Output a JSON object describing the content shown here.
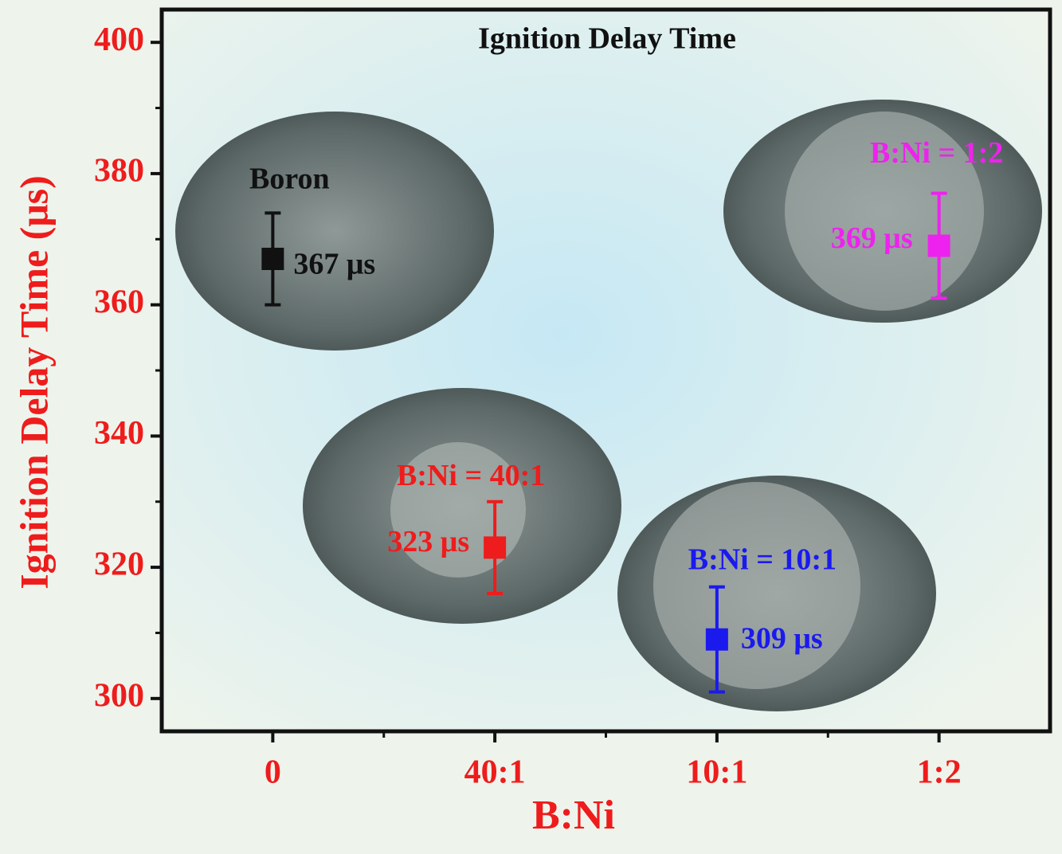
{
  "chart_data": {
    "type": "errorbar",
    "title": "Ignition Delay Time",
    "x_label": "B:Ni",
    "y_label": "Ignition Delay Time (μs)",
    "categories": [
      "0",
      "40:1",
      "10:1",
      "1:2"
    ],
    "values": [
      367,
      323,
      309,
      369
    ],
    "errors": [
      7,
      7,
      8,
      8
    ],
    "value_labels": [
      "367 μs",
      "323 μs",
      "309 μs",
      "369 μs"
    ],
    "point_labels": [
      "Boron",
      "B:Ni = 40:1",
      "B:Ni = 10:1",
      "B:Ni = 1:2"
    ],
    "colors": [
      "#111111",
      "#ee1c1c",
      "#1a1aee",
      "#ee22ee"
    ],
    "ylim": [
      295,
      405
    ],
    "yticks": [
      300,
      320,
      340,
      360,
      380,
      400
    ],
    "yminor_ticks": [
      310,
      330,
      350,
      370,
      390
    ],
    "axis_color": "#ee1c1c"
  }
}
